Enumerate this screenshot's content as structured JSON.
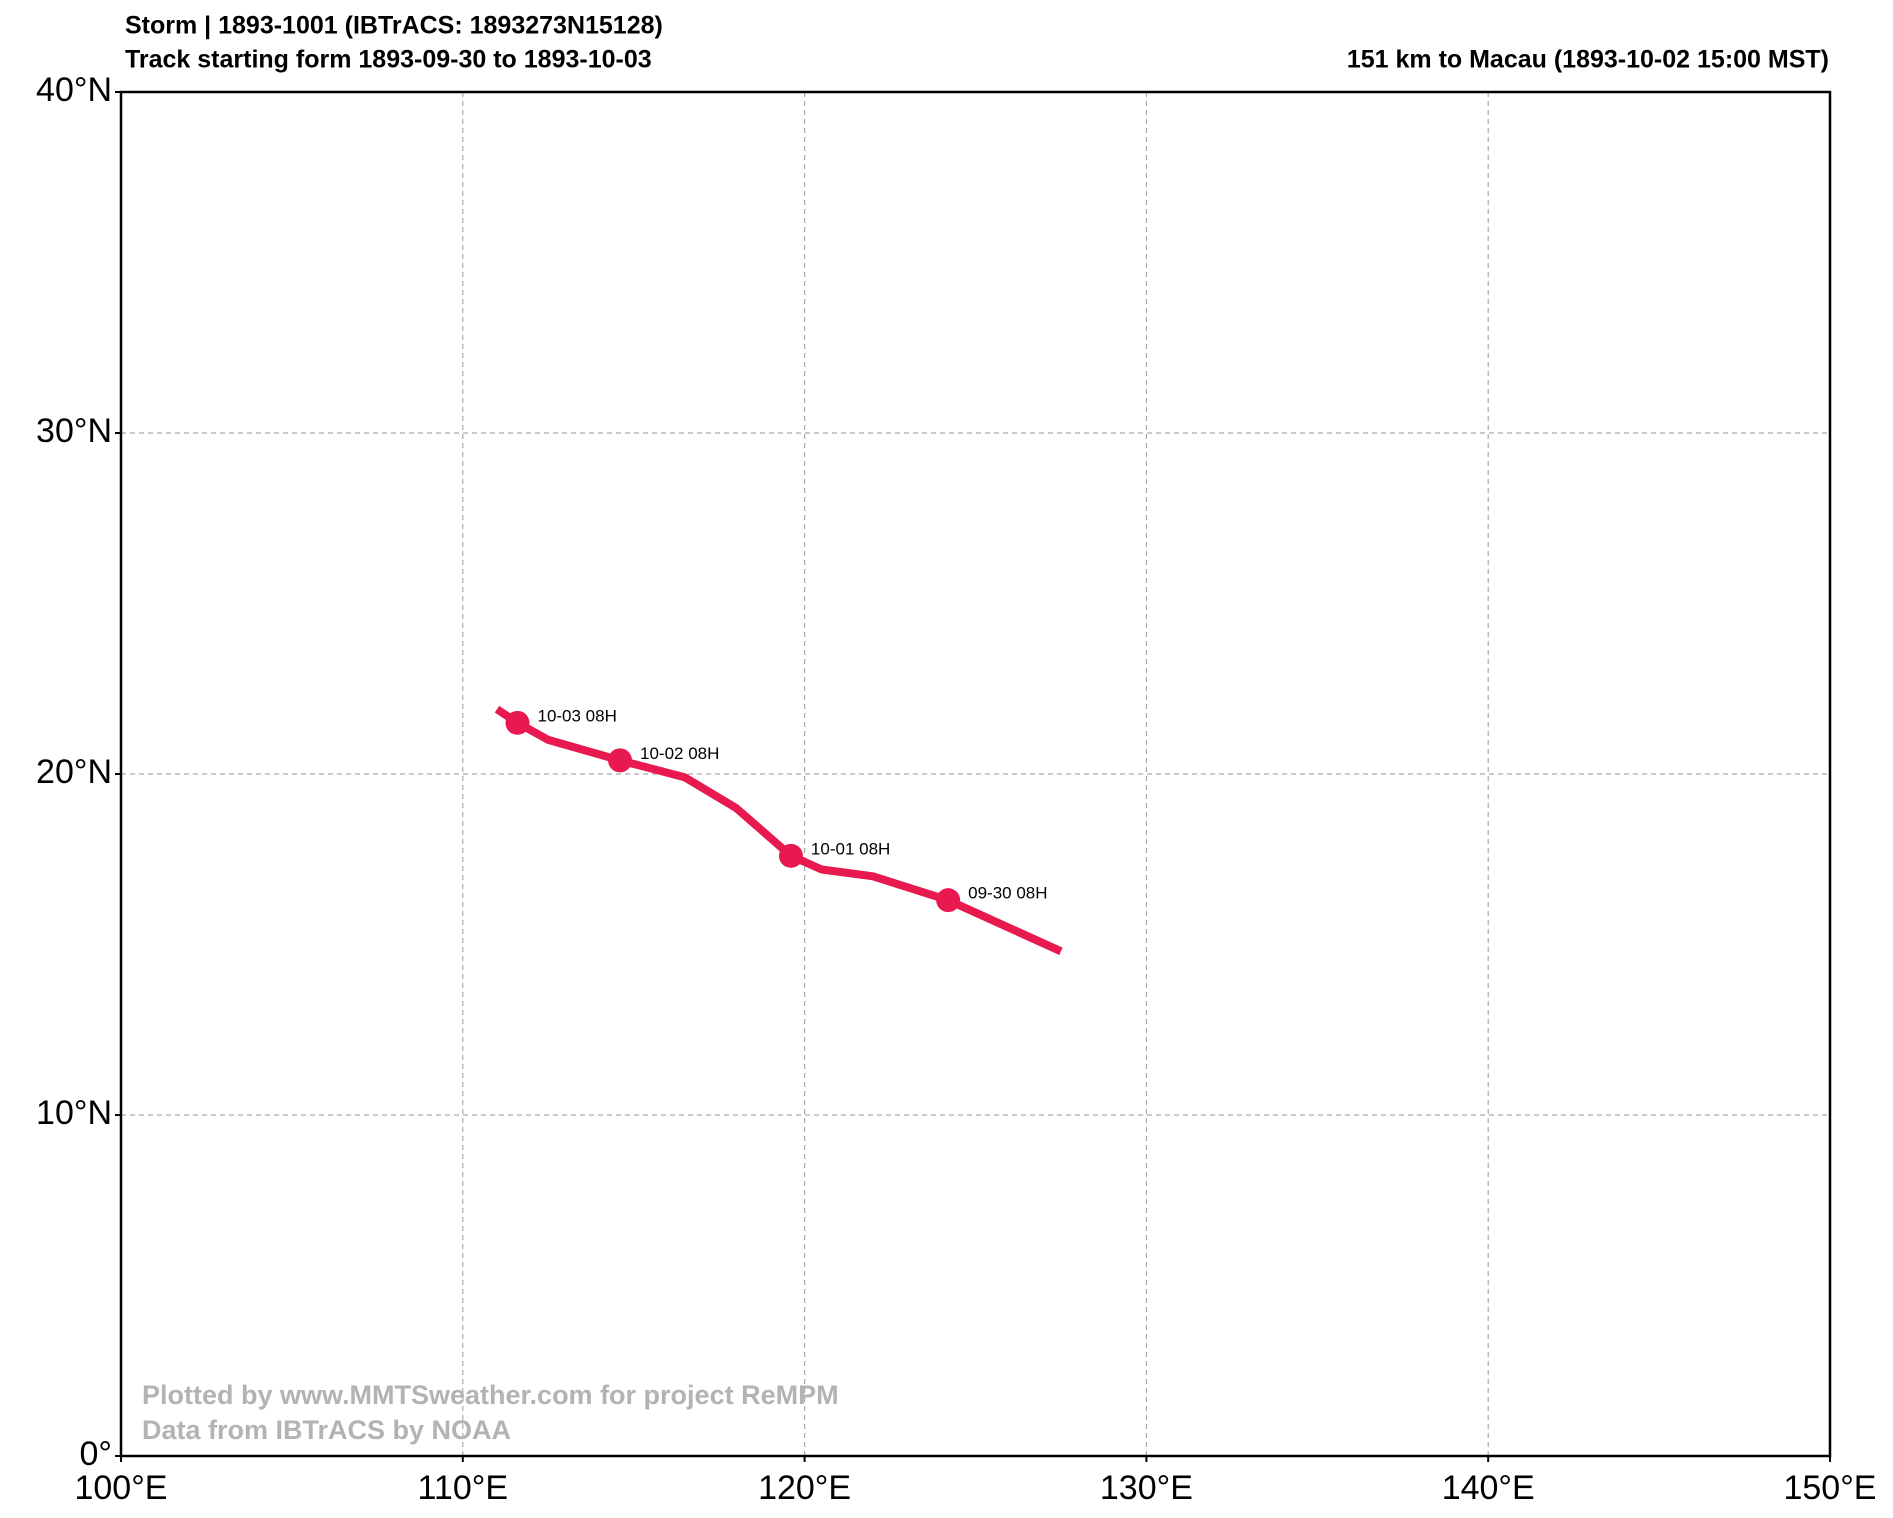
{
  "chart_data": {
    "type": "track-map",
    "title": "Storm | 1893-1001 (IBTrACS: 1893273N15128)",
    "subtitle": "Track starting form 1893-09-30 to 1893-10-03",
    "info": "151 km to Macau (1893-10-02 15:00 MST)",
    "credits": [
      "Plotted by www.MMTSweather.com for project ReMPM",
      "Data from IBTrACS by NOAA"
    ],
    "xlim": [
      100,
      150
    ],
    "ylim": [
      0,
      40
    ],
    "xticks": [
      {
        "value": 100,
        "label": "100°E"
      },
      {
        "value": 110,
        "label": "110°E"
      },
      {
        "value": 120,
        "label": "120°E"
      },
      {
        "value": 130,
        "label": "130°E"
      },
      {
        "value": 140,
        "label": "140°E"
      },
      {
        "value": 150,
        "label": "150°E"
      }
    ],
    "yticks": [
      {
        "value": 0,
        "label": "0°"
      },
      {
        "value": 10,
        "label": "10°N"
      },
      {
        "value": 20,
        "label": "20°N"
      },
      {
        "value": 30,
        "label": "30°N"
      },
      {
        "value": 40,
        "label": "40°N"
      }
    ],
    "grid": true,
    "track": {
      "color": "#e8194f",
      "lon": [
        127.5,
        124.2,
        122.0,
        120.5,
        119.6,
        118.0,
        116.5,
        114.6,
        112.5,
        111.6,
        111.0
      ],
      "lat": [
        14.8,
        16.3,
        17.0,
        17.2,
        17.6,
        19.0,
        19.9,
        20.4,
        21.0,
        21.5,
        21.9
      ]
    },
    "points": {
      "labels": [
        "09-30 08H",
        "10-01 08H",
        "10-02 08H",
        "10-03 08H"
      ],
      "lon": [
        124.2,
        119.6,
        114.6,
        111.6
      ],
      "lat": [
        16.3,
        17.6,
        20.4,
        21.5
      ]
    }
  }
}
